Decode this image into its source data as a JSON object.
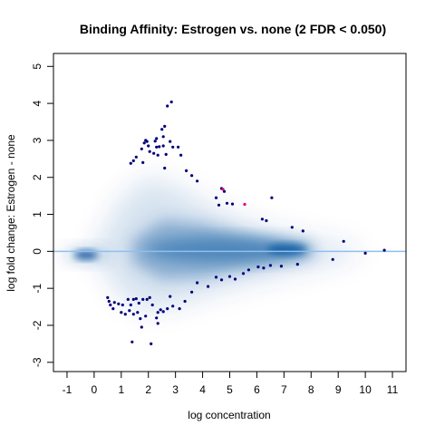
{
  "chart_data": {
    "type": "scatter",
    "title": "Binding Affinity: Estrogen vs. none (2 FDR < 0.050)",
    "xlabel": "log concentration",
    "ylabel": "log fold change: Estrogen - none",
    "xlim": [
      -1.5,
      11.5
    ],
    "ylim": [
      -3.25,
      5.35
    ],
    "x_ticks": [
      -1,
      0,
      1,
      2,
      3,
      4,
      5,
      6,
      7,
      8,
      9,
      10,
      11
    ],
    "y_ticks": [
      -3,
      -2,
      -1,
      0,
      1,
      2,
      3,
      4,
      5
    ],
    "grid": false,
    "legend": "none",
    "reference_line": {
      "y": 0,
      "color": "#8fbff0"
    },
    "density_color": "#08519c",
    "point_color": "#00007a",
    "highlight_color": "#e0007a",
    "series": [
      {
        "points": [
          [
            2.7,
            3.93
          ],
          [
            2.85,
            4.04
          ],
          [
            2.6,
            3.38
          ],
          [
            2.5,
            3.3
          ],
          [
            2.55,
            3.1
          ],
          [
            2.25,
            2.98
          ],
          [
            2.3,
            3.05
          ],
          [
            1.9,
            3.0
          ],
          [
            1.85,
            2.93
          ],
          [
            1.95,
            2.97
          ],
          [
            2.0,
            2.85
          ],
          [
            2.3,
            2.82
          ],
          [
            2.4,
            2.83
          ],
          [
            2.55,
            2.85
          ],
          [
            2.9,
            2.82
          ],
          [
            3.1,
            2.82
          ],
          [
            1.75,
            2.77
          ],
          [
            2.05,
            2.7
          ],
          [
            2.2,
            2.65
          ],
          [
            2.35,
            2.6
          ],
          [
            2.65,
            2.62
          ],
          [
            3.2,
            2.6
          ],
          [
            1.55,
            2.55
          ],
          [
            1.45,
            2.45
          ],
          [
            1.35,
            2.38
          ],
          [
            1.8,
            2.4
          ],
          [
            2.8,
            2.97
          ],
          [
            2.6,
            2.25
          ],
          [
            3.4,
            2.18
          ],
          [
            3.6,
            2.05
          ],
          [
            3.8,
            1.9
          ],
          [
            4.7,
            1.7
          ],
          [
            4.8,
            1.62
          ],
          [
            4.9,
            1.3
          ],
          [
            4.5,
            1.45
          ],
          [
            4.6,
            1.25
          ],
          [
            5.1,
            1.28
          ],
          [
            6.2,
            0.87
          ],
          [
            6.35,
            0.83
          ],
          [
            6.55,
            1.45
          ],
          [
            7.3,
            0.65
          ],
          [
            7.7,
            0.55
          ],
          [
            9.2,
            0.27
          ],
          [
            10.7,
            0.03
          ],
          [
            10.0,
            -0.05
          ],
          [
            8.8,
            -0.22
          ],
          [
            7.5,
            -0.35
          ],
          [
            6.9,
            -0.4
          ],
          [
            6.5,
            -0.38
          ],
          [
            6.25,
            -0.45
          ],
          [
            6.05,
            -0.42
          ],
          [
            5.7,
            -0.5
          ],
          [
            5.5,
            -0.6
          ],
          [
            5.2,
            -0.75
          ],
          [
            5.0,
            -0.68
          ],
          [
            4.7,
            -0.77
          ],
          [
            4.5,
            -0.7
          ],
          [
            4.2,
            -0.95
          ],
          [
            3.8,
            -0.85
          ],
          [
            3.6,
            -1.1
          ],
          [
            3.35,
            -1.35
          ],
          [
            3.15,
            -1.55
          ],
          [
            2.9,
            -1.48
          ],
          [
            2.7,
            -1.55
          ],
          [
            2.55,
            -1.63
          ],
          [
            2.45,
            -1.58
          ],
          [
            2.35,
            -1.65
          ],
          [
            2.3,
            -1.8
          ],
          [
            2.35,
            -1.95
          ],
          [
            2.15,
            -1.45
          ],
          [
            2.05,
            -1.25
          ],
          [
            1.95,
            -1.3
          ],
          [
            1.8,
            -1.3
          ],
          [
            1.55,
            -1.28
          ],
          [
            1.45,
            -1.3
          ],
          [
            1.35,
            -1.45
          ],
          [
            1.3,
            -1.6
          ],
          [
            1.45,
            -1.7
          ],
          [
            1.6,
            -1.65
          ],
          [
            1.7,
            -1.82
          ],
          [
            1.75,
            -2.05
          ],
          [
            1.9,
            -1.75
          ],
          [
            1.25,
            -1.3
          ],
          [
            1.05,
            -1.45
          ],
          [
            0.9,
            -1.42
          ],
          [
            0.75,
            -1.38
          ],
          [
            0.7,
            -1.55
          ],
          [
            0.6,
            -1.45
          ],
          [
            0.55,
            -1.35
          ],
          [
            0.5,
            -1.25
          ],
          [
            1.0,
            -1.65
          ],
          [
            1.15,
            -1.7
          ],
          [
            1.4,
            -2.45
          ],
          [
            2.1,
            -2.5
          ],
          [
            1.65,
            -1.4
          ],
          [
            2.8,
            -1.22
          ]
        ]
      },
      {
        "name": "",
        "highlight": true,
        "points": [
          [
            4.75,
            1.68
          ],
          [
            5.55,
            1.27
          ]
        ]
      }
    ]
  }
}
